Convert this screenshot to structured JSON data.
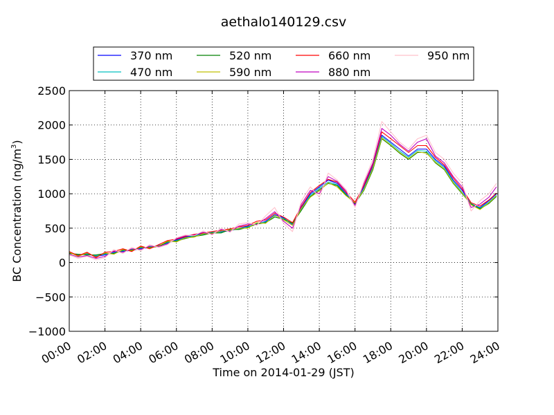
{
  "chart_data": {
    "type": "line",
    "title": "aethalo140129.csv",
    "xlabel": "Time on 2014-01-29 (JST)",
    "ylabel": "BC Concentration (ng/m",
    "ylabel_sup": "3",
    "ylabel_close": ")",
    "xlim": [
      "00:00",
      "24:00"
    ],
    "ylim": [
      -1000,
      2500
    ],
    "grid": true,
    "legend_position": "top",
    "x_ticks": [
      "00:00",
      "02:00",
      "04:00",
      "06:00",
      "08:00",
      "10:00",
      "12:00",
      "14:00",
      "16:00",
      "18:00",
      "20:00",
      "22:00",
      "24:00"
    ],
    "y_ticks": [
      "-1000",
      "-500",
      "0",
      "500",
      "1000",
      "1500",
      "2000",
      "2500"
    ],
    "x": [
      "00:00",
      "00:30",
      "01:00",
      "01:30",
      "02:00",
      "02:30",
      "03:00",
      "03:30",
      "04:00",
      "04:30",
      "05:00",
      "05:30",
      "06:00",
      "06:30",
      "07:00",
      "07:30",
      "08:00",
      "08:30",
      "09:00",
      "09:30",
      "10:00",
      "10:30",
      "11:00",
      "11:30",
      "12:00",
      "12:30",
      "13:00",
      "13:30",
      "14:00",
      "14:30",
      "15:00",
      "15:30",
      "16:00",
      "16:30",
      "17:00",
      "17:30",
      "18:00",
      "18:30",
      "19:00",
      "19:30",
      "20:00",
      "20:30",
      "21:00",
      "21:30",
      "22:00",
      "22:30",
      "23:00",
      "23:30",
      "23:55"
    ],
    "series": [
      {
        "name": "370 nm",
        "color": "#0000ff",
        "values": [
          150,
          100,
          130,
          90,
          110,
          150,
          160,
          180,
          200,
          220,
          250,
          280,
          330,
          370,
          400,
          420,
          430,
          450,
          460,
          500,
          530,
          560,
          600,
          700,
          650,
          550,
          800,
          1000,
          1100,
          1200,
          1150,
          1000,
          850,
          1100,
          1400,
          1850,
          1750,
          1650,
          1550,
          1650,
          1650,
          1500,
          1400,
          1200,
          1050,
          850,
          800,
          900,
          1000
        ]
      },
      {
        "name": "470 nm",
        "color": "#00bfbf",
        "values": [
          140,
          110,
          120,
          100,
          120,
          140,
          170,
          190,
          210,
          230,
          240,
          290,
          320,
          360,
          390,
          410,
          440,
          440,
          470,
          490,
          520,
          570,
          590,
          680,
          640,
          560,
          780,
          980,
          1080,
          1170,
          1130,
          990,
          860,
          1080,
          1380,
          1830,
          1730,
          1620,
          1530,
          1630,
          1620,
          1480,
          1380,
          1180,
          1020,
          860,
          790,
          880,
          980
        ]
      },
      {
        "name": "520 nm",
        "color": "#008000",
        "values": [
          130,
          120,
          110,
          110,
          130,
          130,
          180,
          180,
          220,
          220,
          230,
          300,
          310,
          350,
          380,
          400,
          430,
          430,
          480,
          480,
          510,
          560,
          580,
          660,
          630,
          570,
          760,
          960,
          1060,
          1150,
          1120,
          980,
          860,
          1050,
          1350,
          1800,
          1700,
          1590,
          1500,
          1600,
          1600,
          1450,
          1350,
          1150,
          1000,
          850,
          780,
          860,
          960
        ]
      },
      {
        "name": "590 nm",
        "color": "#bfbf00",
        "values": [
          150,
          90,
          140,
          80,
          140,
          120,
          190,
          170,
          230,
          210,
          240,
          310,
          300,
          360,
          370,
          420,
          420,
          460,
          470,
          500,
          500,
          580,
          570,
          690,
          620,
          540,
          790,
          950,
          1040,
          1160,
          1100,
          970,
          870,
          1060,
          1370,
          1810,
          1710,
          1600,
          1510,
          1610,
          1590,
          1460,
          1360,
          1160,
          1010,
          840,
          770,
          870,
          970
        ]
      },
      {
        "name": "660 nm",
        "color": "#ff0000",
        "values": [
          160,
          100,
          150,
          70,
          150,
          160,
          200,
          160,
          240,
          200,
          260,
          320,
          340,
          380,
          410,
          430,
          450,
          470,
          490,
          520,
          540,
          600,
          620,
          720,
          660,
          580,
          820,
          1020,
          1120,
          1210,
          1170,
          1020,
          880,
          1120,
          1430,
          1900,
          1800,
          1700,
          1600,
          1700,
          1700,
          1530,
          1420,
          1230,
          1070,
          870,
          820,
          910,
          1010
        ]
      },
      {
        "name": "880 nm",
        "color": "#bf00bf",
        "values": [
          120,
          80,
          100,
          60,
          90,
          170,
          150,
          200,
          190,
          240,
          230,
          270,
          350,
          390,
          400,
          440,
          410,
          480,
          450,
          530,
          560,
          550,
          640,
          740,
          600,
          500,
          850,
          1050,
          1000,
          1250,
          1180,
          1040,
          830,
          1150,
          1450,
          1950,
          1850,
          1720,
          1620,
          1750,
          1800,
          1550,
          1450,
          1250,
          1100,
          800,
          850,
          950,
          1100
        ]
      },
      {
        "name": "950 nm",
        "color": "#ffc0cb",
        "values": [
          110,
          60,
          90,
          40,
          70,
          190,
          130,
          220,
          170,
          260,
          220,
          260,
          360,
          400,
          390,
          460,
          400,
          500,
          440,
          560,
          580,
          540,
          680,
          800,
          570,
          450,
          900,
          1100,
          950,
          1300,
          1200,
          1060,
          800,
          1180,
          1500,
          2050,
          1900,
          1750,
          1650,
          1800,
          1850,
          1600,
          1500,
          1300,
          1150,
          750,
          900,
          1000,
          1150
        ]
      }
    ]
  }
}
